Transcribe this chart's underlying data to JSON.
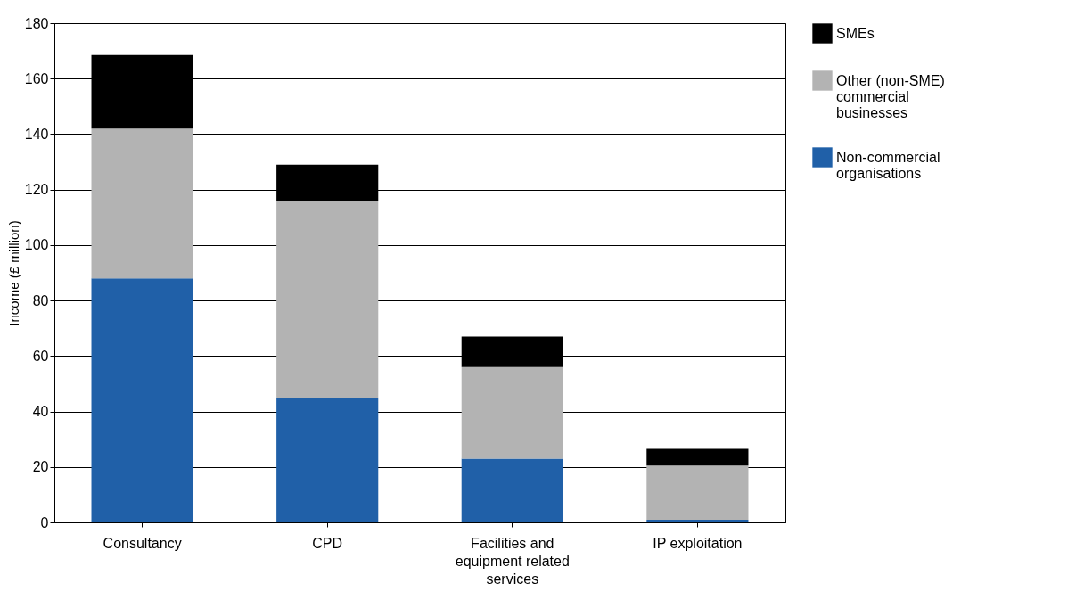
{
  "chart_data": {
    "type": "bar",
    "stacked": true,
    "ylabel": "Income (£ million)",
    "categories": [
      "Consultancy",
      "CPD",
      "Facilities and equipment related services",
      "IP exploitation"
    ],
    "series": [
      {
        "name": "Non-commercial organisations",
        "color": "#2060a8",
        "values": [
          88,
          45,
          23,
          1
        ]
      },
      {
        "name": "Other (non-SME) commercial businesses",
        "color": "#b3b3b3",
        "values": [
          54,
          71,
          33,
          19.5
        ]
      },
      {
        "name": "SMEs",
        "color": "#000000",
        "values": [
          26.5,
          13,
          11,
          6
        ]
      }
    ],
    "ylim": [
      0,
      180
    ],
    "yticks": [
      0,
      20,
      40,
      60,
      80,
      100,
      120,
      140,
      160,
      180
    ],
    "grid": "y",
    "legend": "right"
  }
}
